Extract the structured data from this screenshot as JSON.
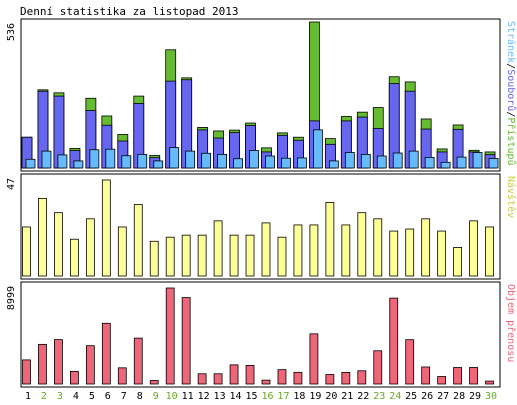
{
  "chart_data": {
    "type": "bar",
    "title": "Denní statistika za listopad 2013",
    "categories": [
      "1",
      "2",
      "3",
      "4",
      "5",
      "6",
      "7",
      "8",
      "9",
      "10",
      "11",
      "12",
      "13",
      "14",
      "15",
      "16",
      "17",
      "18",
      "19",
      "20",
      "21",
      "22",
      "23",
      "24",
      "25",
      "26",
      "27",
      "28",
      "29",
      "30"
    ],
    "weekend_days": [
      "2",
      "3",
      "9",
      "10",
      "16",
      "17",
      "23",
      "24",
      "30"
    ],
    "colors": {
      "background": "#ffffff",
      "panel_border": "#000000",
      "access": "#66bb33",
      "files": "#6666ee",
      "pages": "#66bbff",
      "visits": "#ffff99",
      "transfer": "#ee6677",
      "weekday_label": "#000000",
      "weekend_label": "#66aa22"
    },
    "panels": [
      {
        "max_label": "536",
        "ylim": [
          0,
          536
        ],
        "legend": [
          {
            "text": "Stránek",
            "color": "#66bbff"
          },
          {
            "text": "/",
            "color": "#000000"
          },
          {
            "text": "Souborů",
            "color": "#6666ee"
          },
          {
            "text": "/",
            "color": "#000000"
          },
          {
            "text": "Přístupů",
            "color": "#66bb33"
          }
        ],
        "series": [
          {
            "name": "Přístupů",
            "values": [
              113,
              287,
              276,
              72,
              256,
              191,
              123,
              264,
              46,
              434,
              331,
              149,
              136,
              139,
              165,
              74,
              129,
              113,
              536,
              108,
              189,
              205,
              222,
              335,
              316,
              180,
              70,
              158,
              65,
              59
            ]
          },
          {
            "name": "Souborů",
            "values": [
              113,
              282,
              264,
              64,
              211,
              157,
              99,
              237,
              38,
              319,
              324,
              140,
              110,
              130,
              156,
              59,
              120,
              102,
              173,
              87,
              173,
              187,
              145,
              310,
              282,
              143,
              59,
              142,
              59,
              49
            ]
          },
          {
            "name": "Stránek",
            "values": [
              32,
              62,
              48,
              26,
              67,
              69,
              45,
              50,
              26,
              75,
              62,
              54,
              50,
              34,
              64,
              44,
              36,
              37,
              140,
              26,
              57,
              50,
              44,
              55,
              62,
              39,
              21,
              40,
              57,
              35
            ]
          }
        ]
      },
      {
        "max_label": "47",
        "ylim": [
          0,
          47
        ],
        "legend": [
          {
            "text": "Návštěv",
            "color": "#cccc44"
          }
        ],
        "series": [
          {
            "name": "Návštěv",
            "values": [
              24,
              38,
              31,
              18,
              28,
              47,
              24,
              35,
              17,
              19,
              20,
              20,
              27,
              20,
              20,
              26,
              19,
              25,
              25,
              36,
              25,
              31,
              28,
              22,
              23,
              28,
              22,
              14,
              27,
              24
            ]
          }
        ]
      },
      {
        "max_label": "8999",
        "ylim": [
          0,
          8999
        ],
        "legend": [
          {
            "text": "Objem přenosu",
            "color": "#ee6677"
          }
        ],
        "series": [
          {
            "name": "Objem přenosu",
            "values": [
              2258,
              3716,
              4161,
              1184,
              3592,
              5691,
              1516,
              4302,
              328,
              8999,
              8102,
              958,
              958,
              1795,
              1745,
              362,
              1346,
              1094,
              4703,
              889,
              1089,
              1239,
              3117,
              8051,
              4153,
              1596,
              701,
              1546,
              1550,
              272
            ]
          }
        ]
      }
    ]
  }
}
